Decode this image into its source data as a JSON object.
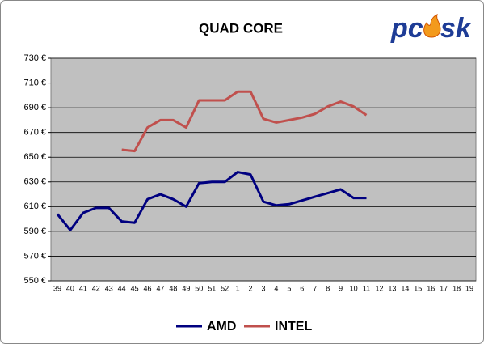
{
  "chart_data": {
    "type": "line",
    "title": "QUAD CORE",
    "logo_left": "pc",
    "logo_right": "sk",
    "categories": [
      "39",
      "40",
      "41",
      "42",
      "43",
      "44",
      "45",
      "46",
      "47",
      "48",
      "49",
      "50",
      "51",
      "52",
      "1",
      "2",
      "3",
      "4",
      "5",
      "6",
      "7",
      "8",
      "9",
      "10",
      "11",
      "12",
      "13",
      "14",
      "15",
      "16",
      "17",
      "18",
      "19"
    ],
    "series": [
      {
        "name": "AMD",
        "color": "#000080",
        "values": [
          604,
          591,
          605,
          609,
          609,
          598,
          597,
          616,
          620,
          616,
          610,
          629,
          630,
          630,
          638,
          636,
          614,
          611,
          612,
          615,
          618,
          621,
          624,
          617,
          617,
          null,
          null,
          null,
          null,
          null,
          null,
          null,
          null
        ]
      },
      {
        "name": "INTEL",
        "color": "#c0504d",
        "values": [
          null,
          null,
          null,
          null,
          null,
          656,
          655,
          674,
          680,
          680,
          674,
          696,
          696,
          696,
          703,
          703,
          681,
          678,
          680,
          682,
          685,
          691,
          695,
          691,
          684,
          null,
          null,
          null,
          null,
          null,
          null,
          null,
          null
        ]
      }
    ],
    "ylim": [
      550,
      730
    ],
    "yticks": [
      {
        "value": 550,
        "label": "550 €"
      },
      {
        "value": 570,
        "label": "570 €"
      },
      {
        "value": 590,
        "label": "590 €"
      },
      {
        "value": 610,
        "label": "610 €"
      },
      {
        "value": 630,
        "label": "630 €"
      },
      {
        "value": 650,
        "label": "650 €"
      },
      {
        "value": 670,
        "label": "670 €"
      },
      {
        "value": 690,
        "label": "690 €"
      },
      {
        "value": 710,
        "label": "710 €"
      },
      {
        "value": 730,
        "label": "730 €"
      }
    ],
    "grid": true,
    "legend": "bottom",
    "plot_background": "#c0c0c0"
  }
}
